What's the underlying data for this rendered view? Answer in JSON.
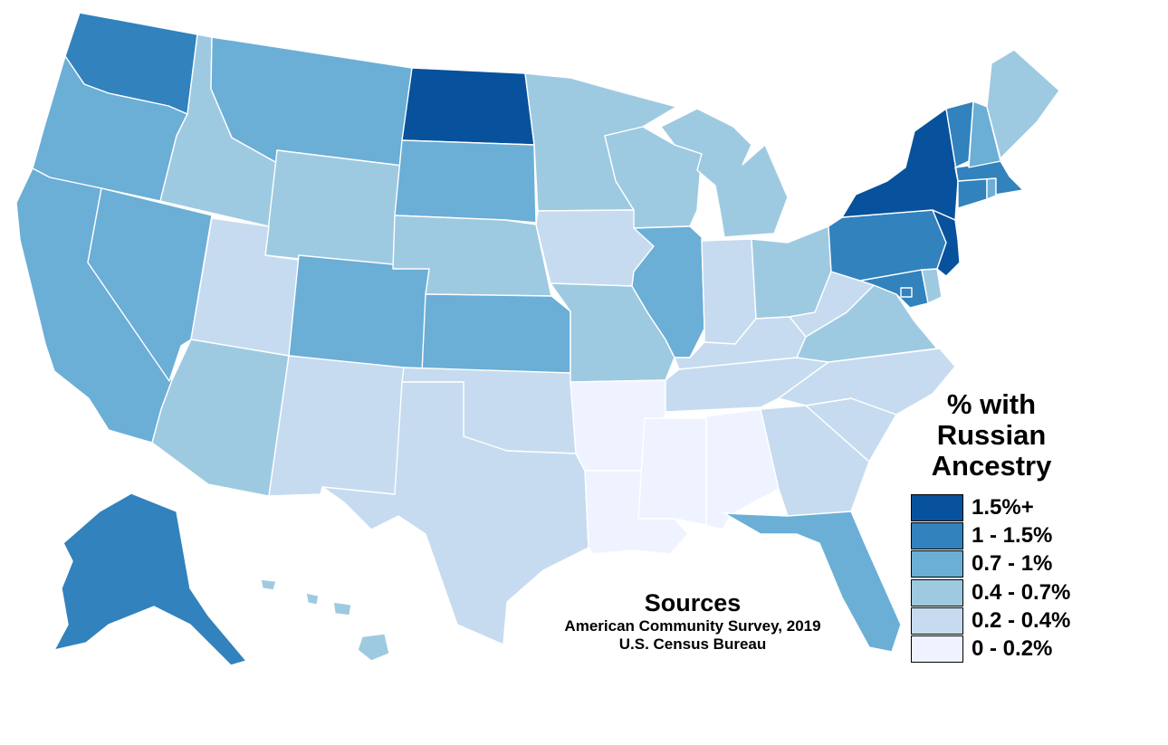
{
  "legend": {
    "title_lines": [
      "% with",
      "Russian",
      "Ancestry"
    ],
    "classes": [
      {
        "label": "1.5%+",
        "color": "#08519c"
      },
      {
        "label": "1 - 1.5%",
        "color": "#3182bd"
      },
      {
        "label": "0.7 - 1%",
        "color": "#6baed6"
      },
      {
        "label": "0.4 - 0.7%",
        "color": "#9ecae1"
      },
      {
        "label": "0.2 - 0.4%",
        "color": "#c6dbef"
      },
      {
        "label": "0 - 0.2%",
        "color": "#eff3ff"
      }
    ]
  },
  "sources": {
    "heading": "Sources",
    "lines": [
      "American Community Survey, 2019",
      "U.S. Census Bureau"
    ]
  },
  "states": [
    {
      "name": "Washington",
      "class": 1
    },
    {
      "name": "Oregon",
      "class": 2
    },
    {
      "name": "California",
      "class": 2
    },
    {
      "name": "Nevada",
      "class": 2
    },
    {
      "name": "Idaho",
      "class": 3
    },
    {
      "name": "Montana",
      "class": 2
    },
    {
      "name": "Wyoming",
      "class": 3
    },
    {
      "name": "Utah",
      "class": 4
    },
    {
      "name": "Arizona",
      "class": 3
    },
    {
      "name": "Colorado",
      "class": 2
    },
    {
      "name": "New Mexico",
      "class": 4
    },
    {
      "name": "North Dakota",
      "class": 0
    },
    {
      "name": "South Dakota",
      "class": 2
    },
    {
      "name": "Nebraska",
      "class": 3
    },
    {
      "name": "Kansas",
      "class": 2
    },
    {
      "name": "Oklahoma",
      "class": 4
    },
    {
      "name": "Texas",
      "class": 4
    },
    {
      "name": "Minnesota",
      "class": 3
    },
    {
      "name": "Iowa",
      "class": 4
    },
    {
      "name": "Missouri",
      "class": 3
    },
    {
      "name": "Arkansas",
      "class": 5
    },
    {
      "name": "Louisiana",
      "class": 5
    },
    {
      "name": "Wisconsin",
      "class": 3
    },
    {
      "name": "Illinois",
      "class": 2
    },
    {
      "name": "Michigan",
      "class": 3
    },
    {
      "name": "Indiana",
      "class": 4
    },
    {
      "name": "Ohio",
      "class": 3
    },
    {
      "name": "Kentucky",
      "class": 4
    },
    {
      "name": "Tennessee",
      "class": 4
    },
    {
      "name": "Mississippi",
      "class": 5
    },
    {
      "name": "Alabama",
      "class": 5
    },
    {
      "name": "Georgia",
      "class": 4
    },
    {
      "name": "Florida",
      "class": 2
    },
    {
      "name": "South Carolina",
      "class": 4
    },
    {
      "name": "North Carolina",
      "class": 4
    },
    {
      "name": "Virginia",
      "class": 3
    },
    {
      "name": "West Virginia",
      "class": 4
    },
    {
      "name": "Maryland",
      "class": 1
    },
    {
      "name": "Delaware",
      "class": 3
    },
    {
      "name": "District of Columbia",
      "class": 1
    },
    {
      "name": "Pennsylvania",
      "class": 1
    },
    {
      "name": "New Jersey",
      "class": 0
    },
    {
      "name": "New York",
      "class": 0
    },
    {
      "name": "Connecticut",
      "class": 1
    },
    {
      "name": "Rhode Island",
      "class": 2
    },
    {
      "name": "Massachusetts",
      "class": 1
    },
    {
      "name": "Vermont",
      "class": 1
    },
    {
      "name": "New Hampshire",
      "class": 2
    },
    {
      "name": "Maine",
      "class": 3
    },
    {
      "name": "Alaska",
      "class": 1
    },
    {
      "name": "Hawaii",
      "class": 3
    }
  ]
}
